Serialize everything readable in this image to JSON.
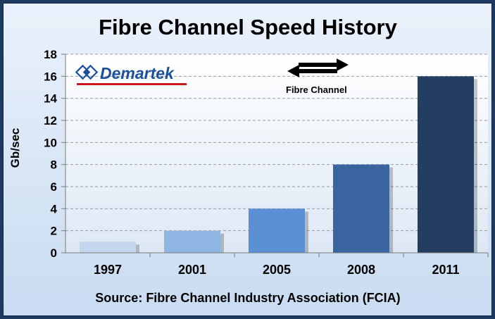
{
  "chart_data": {
    "type": "bar",
    "title": "Fibre Channel Speed History",
    "ylabel": "Gb/sec",
    "xlabel": "",
    "categories": [
      "1997",
      "2001",
      "2005",
      "2008",
      "2011"
    ],
    "values": [
      1,
      2,
      4,
      8,
      16
    ],
    "bar_colors": [
      "#c3d6ee",
      "#8fb5e3",
      "#5a8fd4",
      "#3a64a0",
      "#243e62"
    ],
    "ylim": [
      0,
      18
    ],
    "yticks": [
      0,
      2,
      4,
      6,
      8,
      10,
      12,
      14,
      16,
      18
    ],
    "ytick_labels": [
      "0",
      "2",
      "4",
      "6",
      "8",
      "10",
      "12",
      "14",
      "16",
      "18"
    ],
    "grid": true,
    "annotation": "Fibre Channel",
    "source": "Source: Fibre Channel Industry Association (FCIA)"
  },
  "logo": {
    "text": "Demartek",
    "icon": "diamond-logo-icon",
    "underline_color": "#c8161d"
  },
  "annotation_icon": "bidirectional-arrow-icon"
}
